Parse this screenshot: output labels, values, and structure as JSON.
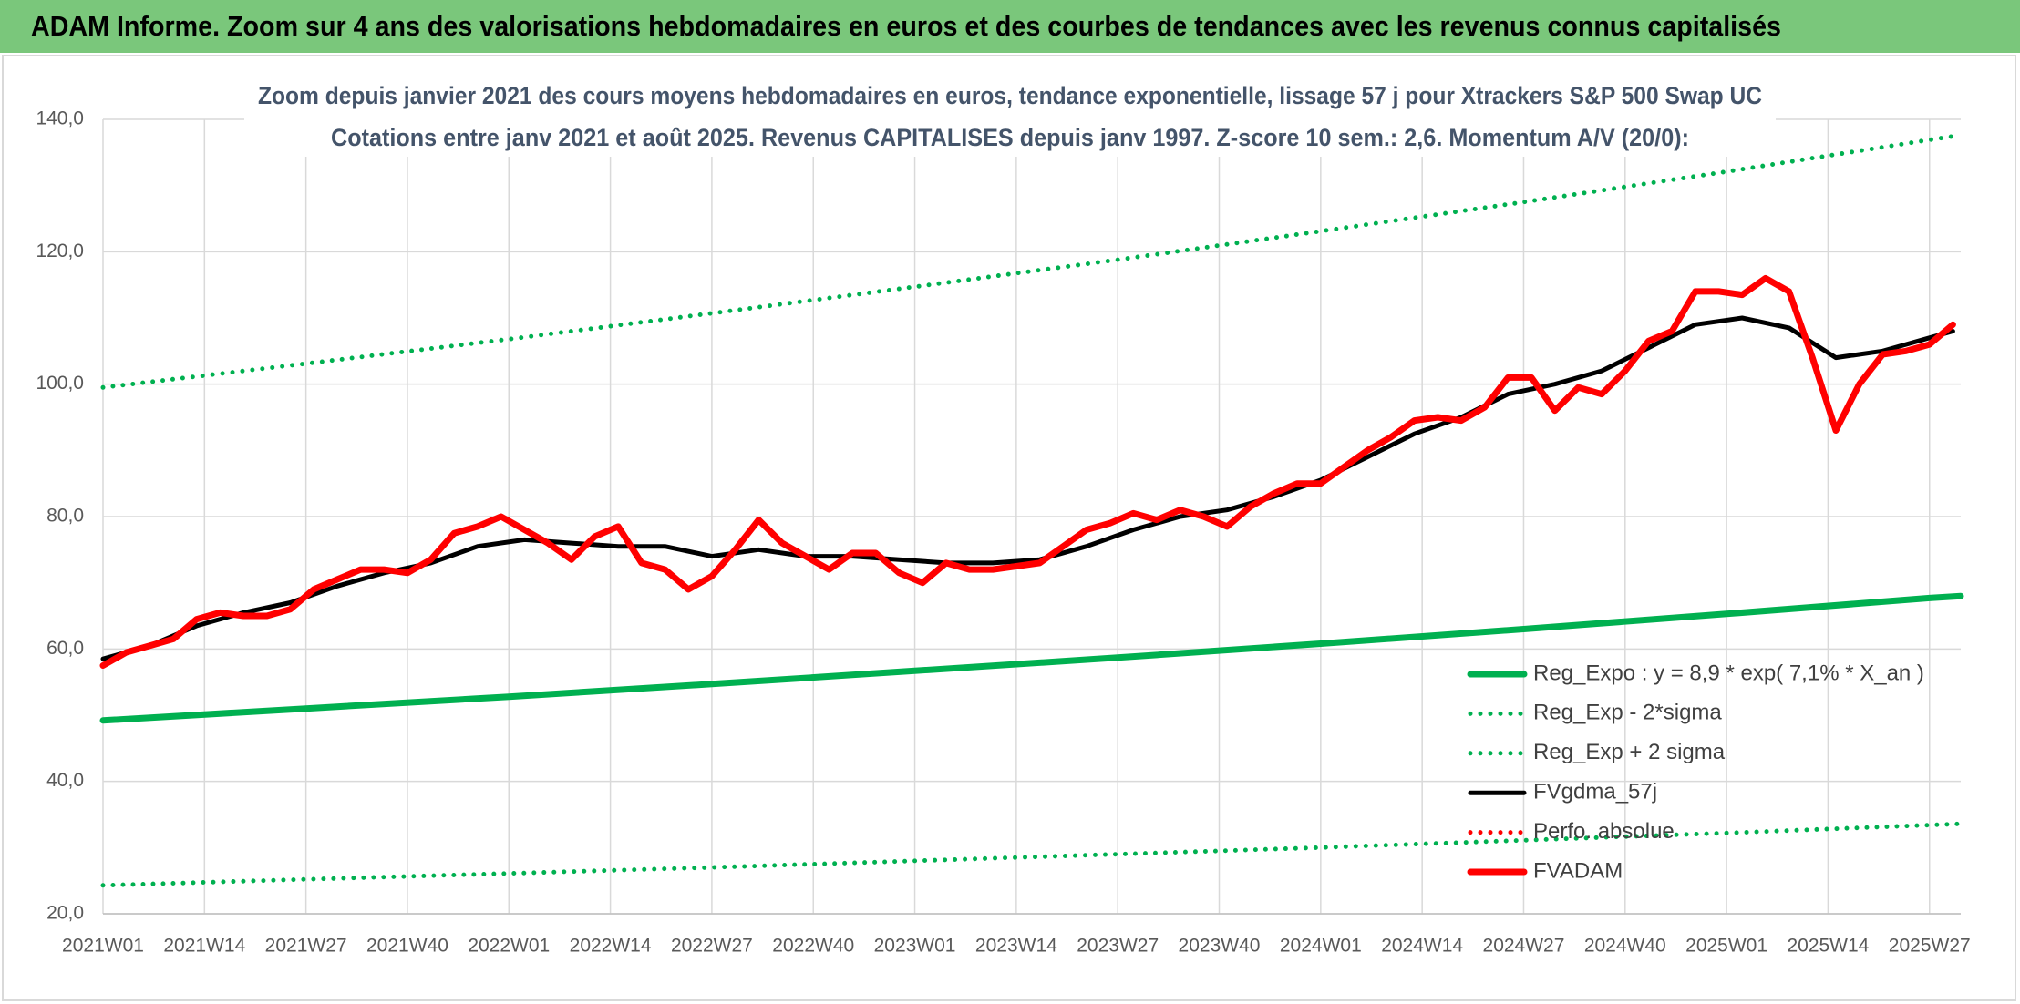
{
  "header": {
    "title": "ADAM Informe. Zoom sur 4 ans des valorisations hebdomadaires en euros et des courbes de tendances avec les revenus connus capitalisés"
  },
  "chart_data": {
    "type": "line",
    "title": [
      "Zoom depuis janvier 2021 des cours moyens hebdomadaires en euros, tendance exponentielle, lissage 57 j pour Xtrackers S&P 500 Swap UC",
      "Cotations entre janv 2021 et août 2025. Revenus CAPITALISES depuis janv 1997. Z-score 10 sem.: 2,6. Momentum A/V (20/0):"
    ],
    "xlim": [
      0,
      238
    ],
    "xticks": [
      {
        "value": 0,
        "label": "2021W01"
      },
      {
        "value": 13,
        "label": "2021W14"
      },
      {
        "value": 26,
        "label": "2021W27"
      },
      {
        "value": 39,
        "label": "2021W40"
      },
      {
        "value": 52,
        "label": "2022W01"
      },
      {
        "value": 65,
        "label": "2022W14"
      },
      {
        "value": 78,
        "label": "2022W27"
      },
      {
        "value": 91,
        "label": "2022W40"
      },
      {
        "value": 104,
        "label": "2023W01"
      },
      {
        "value": 117,
        "label": "2023W14"
      },
      {
        "value": 130,
        "label": "2023W27"
      },
      {
        "value": 143,
        "label": "2023W40"
      },
      {
        "value": 156,
        "label": "2024W01"
      },
      {
        "value": 169,
        "label": "2024W14"
      },
      {
        "value": 182,
        "label": "2024W27"
      },
      {
        "value": 195,
        "label": "2024W40"
      },
      {
        "value": 208,
        "label": "2025W01"
      },
      {
        "value": 221,
        "label": "2025W14"
      },
      {
        "value": 234,
        "label": "2025W27"
      }
    ],
    "ylim": [
      20,
      140
    ],
    "yticks": [
      {
        "value": 20,
        "label": "20,0"
      },
      {
        "value": 40,
        "label": "40,0"
      },
      {
        "value": 60,
        "label": "60,0"
      },
      {
        "value": 80,
        "label": "80,0"
      },
      {
        "value": 100,
        "label": "100,0"
      },
      {
        "value": 120,
        "label": "120,0"
      },
      {
        "value": 140,
        "label": "140,0"
      }
    ],
    "grid": true,
    "series": [
      {
        "name": "Reg_Expo : y = 8,9 * exp( 7,1% *  X_an )",
        "color": "#00b050",
        "line_style": "solid",
        "x": [
          0,
          26,
          52,
          78,
          104,
          130,
          156,
          182,
          208,
          234,
          238
        ],
        "values": [
          49.2,
          51.0,
          52.8,
          54.7,
          56.7,
          58.7,
          60.8,
          63.0,
          65.3,
          67.7,
          68.0
        ]
      },
      {
        "name": "Reg_Exp - 2*sigma",
        "color": "#00b050",
        "line_style": "dotted",
        "x": [
          0,
          26,
          52,
          78,
          104,
          130,
          156,
          182,
          208,
          234,
          238
        ],
        "values": [
          24.3,
          25.2,
          26.1,
          27.0,
          28.0,
          29.0,
          30.0,
          31.1,
          32.2,
          33.4,
          33.6
        ]
      },
      {
        "name": "Reg_Exp + 2 sigma",
        "color": "#00b050",
        "line_style": "dotted",
        "x": [
          0,
          26,
          52,
          78,
          104,
          130,
          156,
          182,
          208,
          234,
          238
        ],
        "values": [
          99.5,
          103.1,
          106.8,
          110.7,
          114.7,
          118.8,
          123.1,
          127.5,
          132.1,
          136.9,
          137.6
        ]
      },
      {
        "name": "FVgdma_57j",
        "color": "#000000",
        "line_style": "solid",
        "x": [
          0,
          6,
          12,
          18,
          24,
          30,
          36,
          42,
          48,
          54,
          60,
          66,
          72,
          78,
          84,
          90,
          96,
          102,
          108,
          114,
          120,
          126,
          132,
          138,
          144,
          150,
          156,
          162,
          168,
          174,
          180,
          186,
          192,
          198,
          204,
          210,
          216,
          222,
          228,
          234,
          237
        ],
        "values": [
          58.5,
          60.5,
          63.5,
          65.5,
          67,
          69.5,
          71.5,
          73,
          75.5,
          76.5,
          76,
          75.5,
          75.5,
          74,
          75,
          74,
          74,
          73.5,
          73,
          73,
          73.5,
          75.5,
          78,
          80,
          81,
          83,
          85.5,
          89,
          92.5,
          95,
          98.5,
          100,
          102,
          105.5,
          109,
          110,
          108.5,
          104,
          105,
          107,
          108
        ]
      },
      {
        "name": "Perfo. absolue",
        "color": "#ff0000",
        "line_style": "dotted",
        "x": [],
        "values": []
      },
      {
        "name": "FVADAM",
        "color": "#ff0000",
        "line_style": "solid",
        "x": [
          0,
          3,
          6,
          9,
          12,
          15,
          18,
          21,
          24,
          27,
          30,
          33,
          36,
          39,
          42,
          45,
          48,
          51,
          54,
          57,
          60,
          63,
          66,
          69,
          72,
          75,
          78,
          81,
          84,
          87,
          90,
          93,
          96,
          99,
          102,
          105,
          108,
          111,
          114,
          117,
          120,
          123,
          126,
          129,
          132,
          135,
          138,
          141,
          144,
          147,
          150,
          153,
          156,
          159,
          162,
          165,
          168,
          171,
          174,
          177,
          180,
          183,
          186,
          189,
          192,
          195,
          198,
          201,
          204,
          207,
          210,
          213,
          216,
          219,
          222,
          225,
          228,
          231,
          234,
          237
        ],
        "values": [
          57.5,
          59.5,
          60.5,
          61.5,
          64.5,
          65.5,
          65,
          65,
          66,
          69,
          70.5,
          72,
          72,
          71.5,
          73.5,
          77.5,
          78.5,
          80,
          78,
          76,
          73.5,
          77,
          78.5,
          73,
          72,
          69,
          71,
          75,
          79.5,
          76,
          74,
          72,
          74.5,
          74.5,
          71.5,
          70,
          73,
          72,
          72,
          72.5,
          73,
          75.5,
          78,
          79,
          80.5,
          79.5,
          81,
          80,
          78.5,
          81.5,
          83.5,
          85,
          85,
          87.5,
          90,
          92,
          94.5,
          95,
          94.5,
          96.5,
          101,
          101,
          96,
          99.5,
          98.5,
          102,
          106.5,
          108,
          114,
          114,
          113.5,
          116,
          114,
          104,
          93,
          100,
          104.5,
          105,
          106,
          109
        ]
      }
    ]
  }
}
